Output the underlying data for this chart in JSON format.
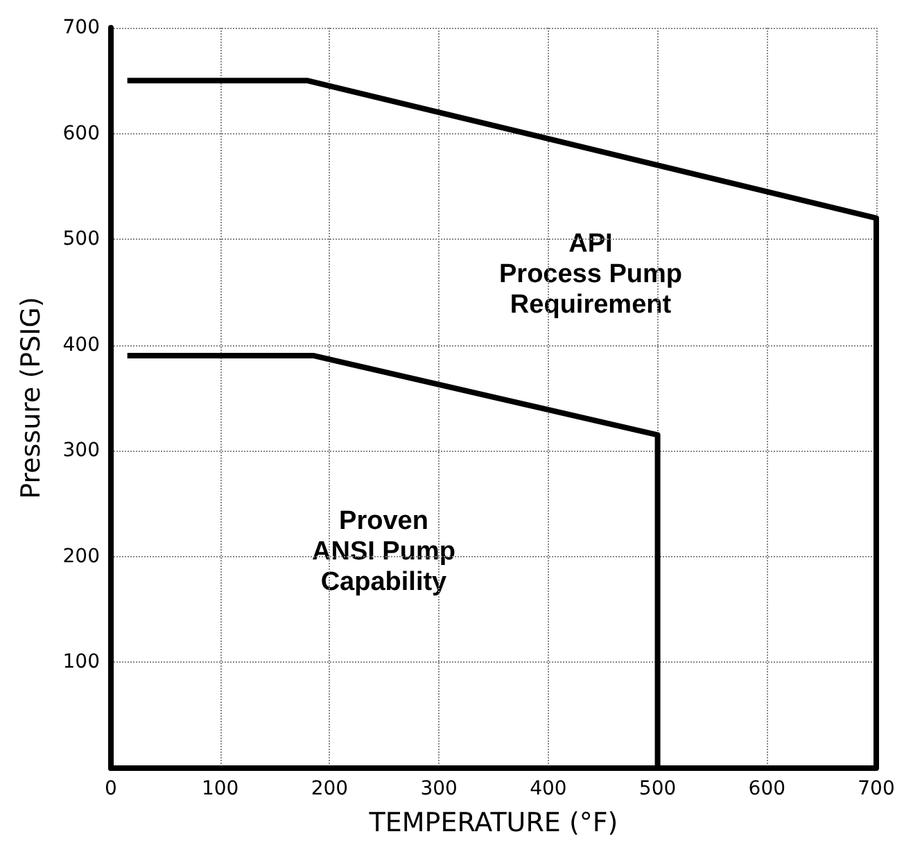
{
  "chart_data": {
    "type": "line",
    "xlabel": "TEMPERATURE (°F)",
    "ylabel": "Pressure (PSIG)",
    "series": [
      {
        "color": "#000000",
        "x": [
          15,
          180,
          700,
          700
        ],
        "values": [
          650,
          650,
          520,
          0
        ]
      },
      {
        "color": "#000000",
        "x": [
          15,
          185,
          500,
          500
        ],
        "values": [
          390,
          390,
          315,
          0
        ]
      }
    ],
    "xlim": [
      0,
      700
    ],
    "ylim": [
      0,
      700
    ],
    "xticks": [
      0,
      100,
      200,
      300,
      400,
      500,
      600,
      700
    ],
    "yticks": [
      100,
      200,
      300,
      400,
      500,
      600,
      700
    ],
    "grid": true,
    "marker": "none",
    "line_style": "solid",
    "annotations": [
      "API\nProcess Pump\nRequirement",
      "Proven\nANSI Pump\nCapability"
    ]
  }
}
